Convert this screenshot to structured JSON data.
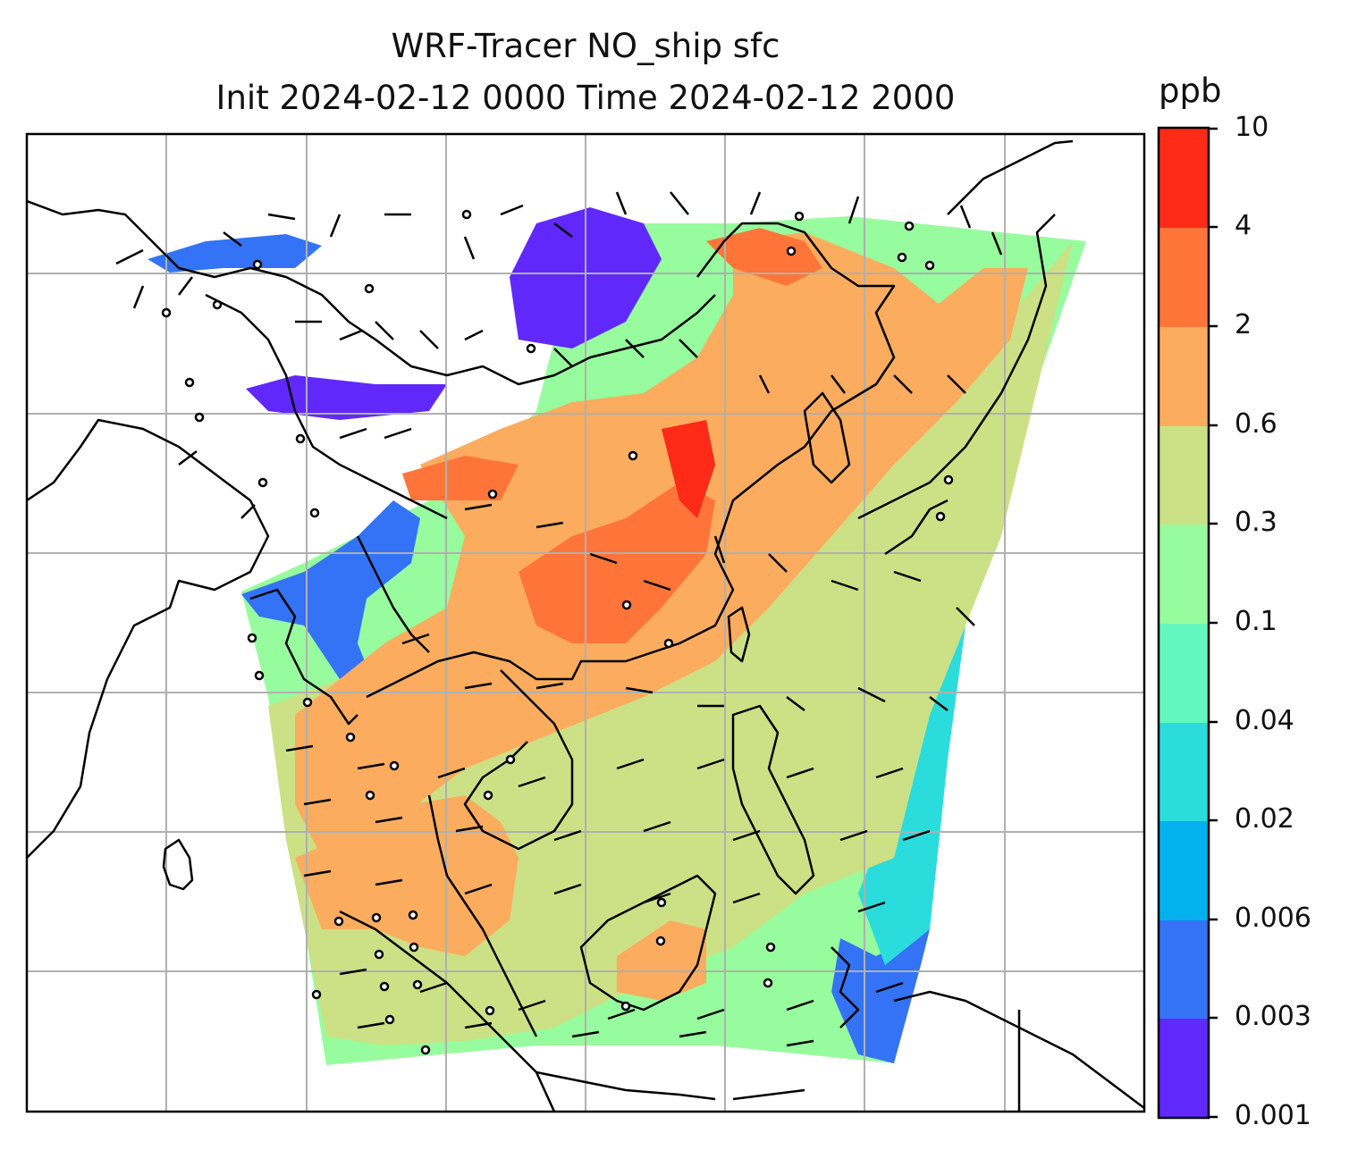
{
  "title": {
    "line1": "WRF-Tracer NO_ship sfc",
    "line2": "Init 2024-02-12 0000 Time 2024-02-12 2000"
  },
  "colorbar": {
    "unit": "ppb",
    "tick_labels": [
      "10",
      "4",
      "2",
      "0.6",
      "0.3",
      "0.1",
      "0.04",
      "0.02",
      "0.006",
      "0.003",
      "0.001"
    ],
    "levels": [
      0.001,
      0.003,
      0.006,
      0.02,
      0.04,
      0.1,
      0.3,
      0.6,
      2,
      4,
      10
    ],
    "colors": [
      "#6128fb",
      "#3473f5",
      "#03b2ec",
      "#2bdcdc",
      "#63f7c0",
      "#97fc9d",
      "#cce185",
      "#fbac5e",
      "#ff7539",
      "#ff2a17"
    ]
  },
  "map": {
    "grid_color": "#b0b0b0",
    "coastline_color": "#000000",
    "background_color": "#ffffff"
  }
}
